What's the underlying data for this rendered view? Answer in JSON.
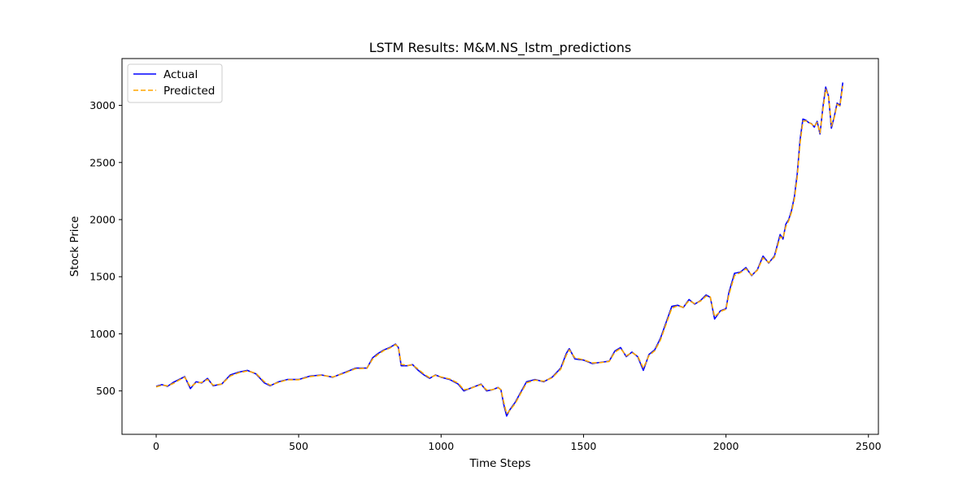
{
  "chart_data": {
    "type": "line",
    "title": "LSTM Results: M&M.NS_lstm_predictions",
    "xlabel": "Time Steps",
    "ylabel": "Stock Price",
    "xlim": [
      -120,
      2535
    ],
    "ylim": [
      120,
      3410
    ],
    "xticks": [
      0,
      500,
      1000,
      1500,
      2000,
      2500
    ],
    "yticks": [
      500,
      1000,
      1500,
      2000,
      2500,
      3000
    ],
    "grid": false,
    "legend_position": "upper-left",
    "x": [
      0,
      20,
      40,
      60,
      80,
      100,
      120,
      140,
      160,
      180,
      200,
      230,
      260,
      290,
      320,
      350,
      380,
      400,
      430,
      460,
      500,
      540,
      580,
      620,
      660,
      700,
      740,
      760,
      780,
      800,
      820,
      840,
      850,
      860,
      880,
      900,
      920,
      940,
      960,
      980,
      1000,
      1030,
      1060,
      1080,
      1100,
      1120,
      1140,
      1160,
      1180,
      1200,
      1210,
      1220,
      1230,
      1240,
      1260,
      1280,
      1300,
      1330,
      1360,
      1390,
      1420,
      1440,
      1450,
      1470,
      1500,
      1530,
      1560,
      1590,
      1610,
      1630,
      1650,
      1670,
      1690,
      1710,
      1730,
      1750,
      1770,
      1790,
      1810,
      1830,
      1850,
      1870,
      1890,
      1910,
      1930,
      1945,
      1960,
      1980,
      2000,
      2010,
      2030,
      2050,
      2070,
      2090,
      2110,
      2130,
      2150,
      2170,
      2190,
      2200,
      2210,
      2220,
      2230,
      2240,
      2250,
      2260,
      2270,
      2280,
      2290,
      2300,
      2310,
      2320,
      2330,
      2340,
      2350,
      2360,
      2370,
      2380,
      2390,
      2400,
      2410
    ],
    "series": [
      {
        "name": "Actual",
        "color": "#0000ff",
        "style": "solid",
        "values": [
          540,
          555,
          540,
          575,
          600,
          625,
          520,
          580,
          570,
          610,
          545,
          560,
          640,
          665,
          680,
          650,
          570,
          545,
          580,
          600,
          600,
          630,
          640,
          620,
          660,
          700,
          700,
          790,
          830,
          860,
          880,
          910,
          880,
          720,
          720,
          730,
          680,
          640,
          610,
          640,
          620,
          600,
          560,
          500,
          520,
          540,
          560,
          500,
          510,
          530,
          510,
          380,
          280,
          330,
          400,
          490,
          580,
          600,
          580,
          620,
          700,
          830,
          870,
          780,
          770,
          740,
          750,
          760,
          850,
          880,
          800,
          840,
          800,
          680,
          820,
          860,
          960,
          1100,
          1240,
          1250,
          1230,
          1300,
          1260,
          1290,
          1340,
          1320,
          1130,
          1200,
          1220,
          1360,
          1530,
          1540,
          1580,
          1510,
          1560,
          1680,
          1620,
          1680,
          1870,
          1830,
          1960,
          2000,
          2080,
          2200,
          2400,
          2700,
          2880,
          2870,
          2850,
          2840,
          2810,
          2860,
          2750,
          2980,
          3160,
          3080,
          2800,
          2900,
          3020,
          3000,
          3200
        ]
      },
      {
        "name": "Predicted",
        "color": "#ffa500",
        "style": "dashed",
        "values": [
          535,
          550,
          545,
          565,
          595,
          620,
          535,
          570,
          575,
          600,
          550,
          560,
          630,
          660,
          675,
          655,
          580,
          550,
          575,
          598,
          598,
          625,
          638,
          622,
          655,
          695,
          698,
          780,
          822,
          855,
          875,
          905,
          885,
          735,
          722,
          728,
          690,
          648,
          615,
          636,
          622,
          605,
          568,
          510,
          518,
          538,
          556,
          508,
          510,
          528,
          512,
          400,
          300,
          325,
          390,
          480,
          570,
          595,
          585,
          615,
          690,
          815,
          860,
          790,
          772,
          745,
          748,
          758,
          840,
          872,
          808,
          836,
          806,
          700,
          810,
          852,
          945,
          1085,
          1225,
          1245,
          1232,
          1290,
          1265,
          1285,
          1330,
          1322,
          1150,
          1195,
          1215,
          1340,
          1510,
          1535,
          1570,
          1515,
          1555,
          1665,
          1625,
          1670,
          1850,
          1835,
          1940,
          1990,
          2065,
          2180,
          2370,
          2670,
          2860,
          2865,
          2850,
          2838,
          2815,
          2850,
          2760,
          2960,
          3140,
          3085,
          2820,
          2890,
          3010,
          2995,
          3170
        ]
      }
    ]
  }
}
